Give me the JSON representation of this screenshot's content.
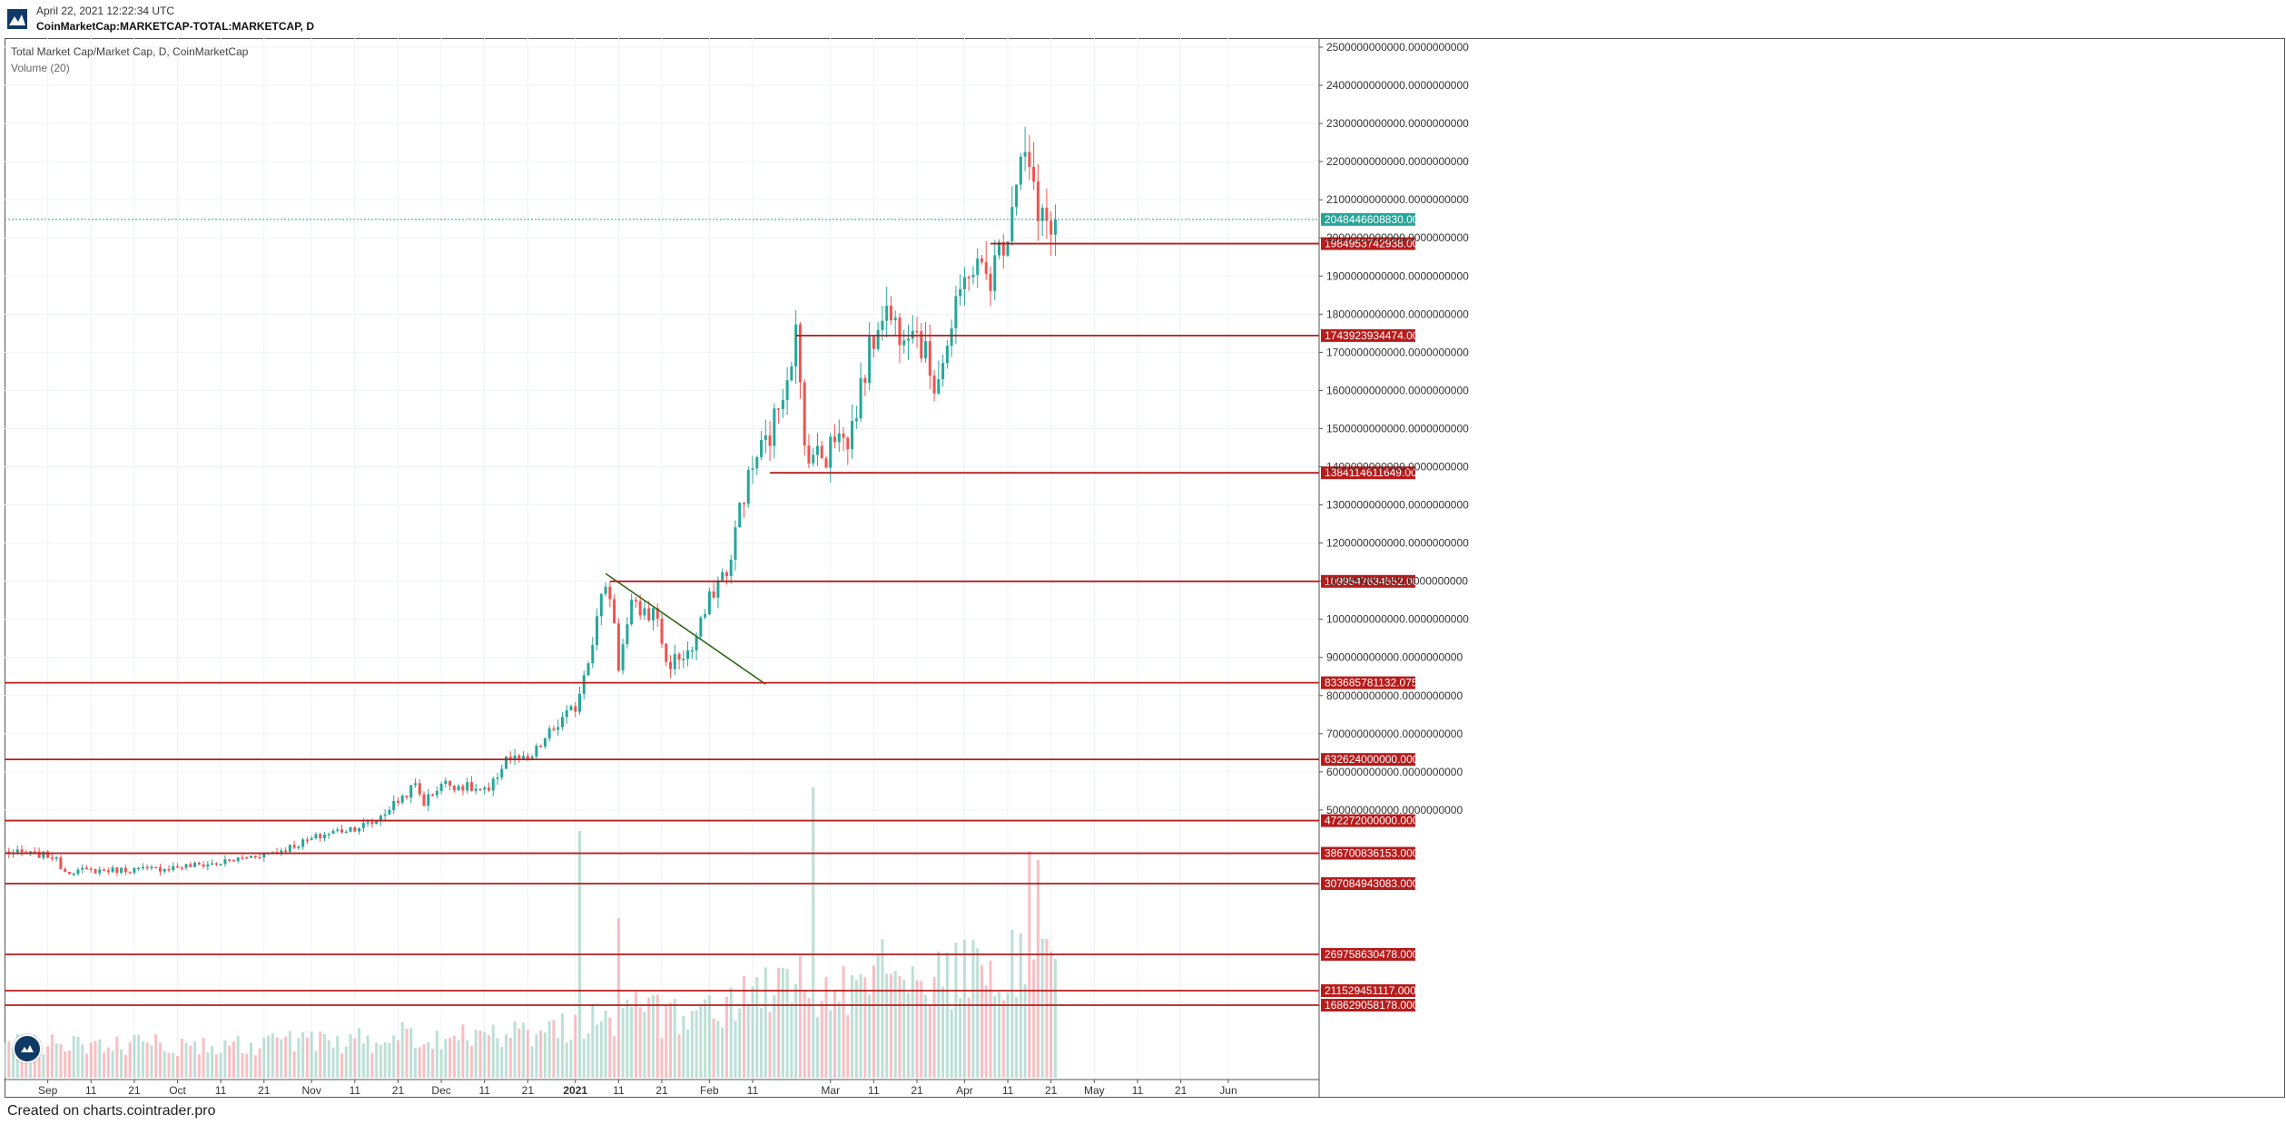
{
  "header": {
    "date": "April 22, 2021 12:22:34 UTC",
    "symbol": "CoinMarketCap:MARKETCAP-TOTAL:MARKETCAP, D"
  },
  "footer": {
    "text": "Created on charts.cointrader.pro"
  },
  "colors": {
    "up": "#26a69a",
    "down": "#ef5350",
    "level": "#b71c1c",
    "current": "#26a69a",
    "trendline": "#33691e",
    "grid": "#eef2f5"
  },
  "chart_data": {
    "type": "candlestick",
    "title": "Total Market Cap/Market Cap, D, CoinMarketCap",
    "indicator": "Volume (20)",
    "y_axis": {
      "min": 300000000000,
      "max": 2500000000000,
      "ticks": [
        {
          "value": 500000000000,
          "label": "500000000000.0000000000"
        },
        {
          "value": 600000000000,
          "label": "600000000000.0000000000"
        },
        {
          "value": 700000000000,
          "label": "700000000000.0000000000"
        },
        {
          "value": 800000000000,
          "label": "800000000000.0000000000"
        },
        {
          "value": 900000000000,
          "label": "900000000000.0000000000"
        },
        {
          "value": 1000000000000,
          "label": "1000000000000.0000000000"
        },
        {
          "value": 1100000000000,
          "label": "1100000000000.0000000000"
        },
        {
          "value": 1200000000000,
          "label": "1200000000000.0000000000"
        },
        {
          "value": 1300000000000,
          "label": "1300000000000.0000000000"
        },
        {
          "value": 1400000000000,
          "label": "1400000000000.0000000000"
        },
        {
          "value": 1500000000000,
          "label": "1500000000000.0000000000"
        },
        {
          "value": 1600000000000,
          "label": "1600000000000.0000000000"
        },
        {
          "value": 1700000000000,
          "label": "1700000000000.0000000000"
        },
        {
          "value": 1800000000000,
          "label": "1800000000000.0000000000"
        },
        {
          "value": 1900000000000,
          "label": "1900000000000.0000000000"
        },
        {
          "value": 2000000000000,
          "label": "2000000000000.0000000000"
        },
        {
          "value": 2100000000000,
          "label": "2100000000000.0000000000"
        },
        {
          "value": 2200000000000,
          "label": "2200000000000.0000000000"
        },
        {
          "value": 2300000000000,
          "label": "2300000000000.0000000000"
        },
        {
          "value": 2400000000000,
          "label": "2400000000000.0000000000"
        },
        {
          "value": 2500000000000,
          "label": "2500000000000.0000000000"
        }
      ]
    },
    "x_axis": {
      "start": "2020-08-22",
      "end": "2021-06-22",
      "ticks": [
        {
          "date": "2020-09-01",
          "label": "Sep"
        },
        {
          "date": "2020-09-11",
          "label": "11"
        },
        {
          "date": "2020-09-21",
          "label": "21"
        },
        {
          "date": "2020-10-01",
          "label": "Oct"
        },
        {
          "date": "2020-10-11",
          "label": "11"
        },
        {
          "date": "2020-10-21",
          "label": "21"
        },
        {
          "date": "2020-11-01",
          "label": "Nov"
        },
        {
          "date": "2020-11-11",
          "label": "11"
        },
        {
          "date": "2020-11-21",
          "label": "21"
        },
        {
          "date": "2020-12-01",
          "label": "Dec"
        },
        {
          "date": "2020-12-11",
          "label": "11"
        },
        {
          "date": "2020-12-21",
          "label": "21"
        },
        {
          "date": "2021-01-01",
          "label": "2021"
        },
        {
          "date": "2021-01-11",
          "label": "11"
        },
        {
          "date": "2021-01-21",
          "label": "21"
        },
        {
          "date": "2021-02-01",
          "label": "Feb"
        },
        {
          "date": "2021-02-11",
          "label": "11"
        },
        {
          "date": "2021-03-01",
          "label": "Mar"
        },
        {
          "date": "2021-03-11",
          "label": "11"
        },
        {
          "date": "2021-03-21",
          "label": "21"
        },
        {
          "date": "2021-04-01",
          "label": "Apr"
        },
        {
          "date": "2021-04-11",
          "label": "11"
        },
        {
          "date": "2021-04-21",
          "label": "21"
        },
        {
          "date": "2021-05-01",
          "label": "May"
        },
        {
          "date": "2021-05-11",
          "label": "11"
        },
        {
          "date": "2021-05-21",
          "label": "21"
        },
        {
          "date": "2021-06-01",
          "label": "Jun"
        }
      ]
    },
    "anchors": [
      {
        "date": "2020-08-22",
        "close": 390000000000
      },
      {
        "date": "2020-09-02",
        "close": 380000000000
      },
      {
        "date": "2020-09-05",
        "close": 340000000000
      },
      {
        "date": "2020-09-25",
        "close": 345000000000
      },
      {
        "date": "2020-10-10",
        "close": 360000000000
      },
      {
        "date": "2020-10-25",
        "close": 395000000000
      },
      {
        "date": "2020-11-05",
        "close": 440000000000
      },
      {
        "date": "2020-11-15",
        "close": 465000000000
      },
      {
        "date": "2020-11-25",
        "close": 565000000000
      },
      {
        "date": "2020-11-27",
        "close": 520000000000
      },
      {
        "date": "2020-12-01",
        "close": 570000000000
      },
      {
        "date": "2020-12-05",
        "close": 565000000000
      },
      {
        "date": "2020-12-12",
        "close": 545000000000
      },
      {
        "date": "2020-12-16",
        "close": 640000000000
      },
      {
        "date": "2020-12-21",
        "close": 625000000000
      },
      {
        "date": "2020-12-26",
        "close": 700000000000
      },
      {
        "date": "2021-01-01",
        "close": 770000000000
      },
      {
        "date": "2021-01-05",
        "close": 950000000000
      },
      {
        "date": "2021-01-08",
        "close": 1100000000000
      },
      {
        "date": "2021-01-10",
        "close": 1000000000000
      },
      {
        "date": "2021-01-11",
        "close": 880000000000
      },
      {
        "date": "2021-01-14",
        "close": 1030000000000
      },
      {
        "date": "2021-01-20",
        "close": 1010000000000
      },
      {
        "date": "2021-01-22",
        "close": 880000000000
      },
      {
        "date": "2021-01-28",
        "close": 920000000000
      },
      {
        "date": "2021-02-02",
        "close": 1080000000000
      },
      {
        "date": "2021-02-06",
        "close": 1150000000000
      },
      {
        "date": "2021-02-08",
        "close": 1300000000000
      },
      {
        "date": "2021-02-12",
        "close": 1430000000000
      },
      {
        "date": "2021-02-15",
        "close": 1480000000000
      },
      {
        "date": "2021-02-19",
        "close": 1650000000000
      },
      {
        "date": "2021-02-21",
        "close": 1750000000000
      },
      {
        "date": "2021-02-23",
        "close": 1450000000000
      },
      {
        "date": "2021-02-28",
        "close": 1420000000000
      },
      {
        "date": "2021-03-01",
        "close": 1500000000000
      },
      {
        "date": "2021-03-05",
        "close": 1460000000000
      },
      {
        "date": "2021-03-10",
        "close": 1700000000000
      },
      {
        "date": "2021-03-13",
        "close": 1820000000000
      },
      {
        "date": "2021-03-17",
        "close": 1760000000000
      },
      {
        "date": "2021-03-20",
        "close": 1790000000000
      },
      {
        "date": "2021-03-25",
        "close": 1620000000000
      },
      {
        "date": "2021-03-28",
        "close": 1720000000000
      },
      {
        "date": "2021-04-02",
        "close": 1930000000000
      },
      {
        "date": "2021-04-07",
        "close": 1900000000000
      },
      {
        "date": "2021-04-11",
        "close": 2030000000000
      },
      {
        "date": "2021-04-14",
        "close": 2240000000000
      },
      {
        "date": "2021-04-16",
        "close": 2180000000000
      },
      {
        "date": "2021-04-18",
        "close": 2040000000000
      },
      {
        "date": "2021-04-22",
        "close": 2048446608830
      }
    ],
    "current_price": {
      "value": 2048446608830,
      "label": "2048446608830.0000000000"
    },
    "levels": [
      {
        "value": 1984953742938,
        "label": "1984953742938.0000000000",
        "from": "2021-04-07"
      },
      {
        "value": 1743923934474,
        "label": "1743923934474.0000000000",
        "from": "2021-02-21"
      },
      {
        "value": 1384114611649,
        "label": "1384114611649.0000000000",
        "from": "2021-02-15"
      },
      {
        "value": 1099547634552,
        "label": "1099547634552.0000000000",
        "from": "2021-01-09"
      },
      {
        "value": 833685781132.0754,
        "label": "833685781132.0755302400",
        "from": "2020-08-22"
      },
      {
        "value": 632624000000,
        "label": "632624000000.0000000000",
        "from": "2020-08-22"
      },
      {
        "value": 472272000000,
        "label": "472272000000.0000000000",
        "from": "2020-08-22"
      },
      {
        "value": 386700836153,
        "label": "386700836153.0000000000",
        "from": "2020-08-22"
      },
      {
        "value": 307084943083,
        "label": "307084943083.0000000000",
        "from": "2020-08-22"
      },
      {
        "value": 269758630478,
        "label": "269758630478.0000000000",
        "from": "2020-08-22"
      },
      {
        "value": 211529451117,
        "label": "211529451117.0000000000",
        "from": "2020-08-22"
      },
      {
        "value": 168629058178,
        "label": "168629058178.0000000000",
        "from": "2020-08-22"
      }
    ],
    "trendline": {
      "x1": "2021-01-08",
      "y1": 1120000000000,
      "x2": "2021-02-14",
      "y2": 830000000000
    },
    "volume_spikes": [
      {
        "date": "2021-01-02",
        "rel": 0.85
      },
      {
        "date": "2021-01-11",
        "rel": 0.55
      },
      {
        "date": "2021-02-22",
        "rel": 0.42
      },
      {
        "date": "2021-02-25",
        "rel": 1.0
      },
      {
        "date": "2021-04-16",
        "rel": 0.78
      },
      {
        "date": "2021-04-18",
        "rel": 0.75
      }
    ]
  }
}
